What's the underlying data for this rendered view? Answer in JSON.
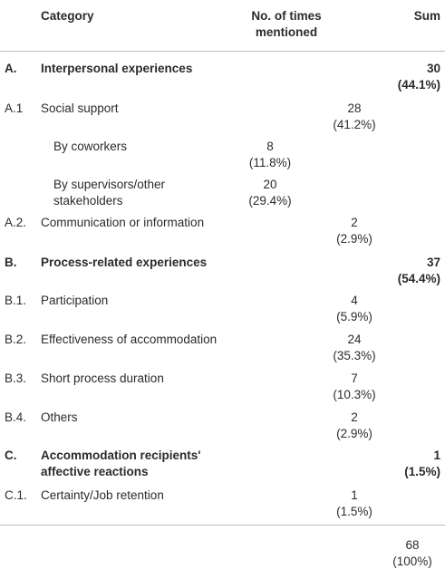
{
  "header": {
    "category": "Category",
    "mentioned_line1": "No. of times",
    "mentioned_line2": "mentioned",
    "sum": "Sum"
  },
  "rows": [
    {
      "code": "A.",
      "label": "Interpersonal experiences",
      "sum_count": "30",
      "sum_pct": "(44.1%)"
    },
    {
      "code": "A.1",
      "label": "Social support",
      "n": "28",
      "pct": "(41.2%)"
    },
    {
      "label": "By coworkers",
      "n": "8",
      "pct": "(11.8%)"
    },
    {
      "label_line1": "By supervisors/other",
      "label_line2": "stakeholders",
      "n": "20",
      "pct": "(29.4%)"
    },
    {
      "code": "A.2.",
      "label": "Communication or information",
      "n": "2",
      "pct": "(2.9%)"
    },
    {
      "code": "B.",
      "label": "Process-related experiences",
      "sum_count": "37",
      "sum_pct": "(54.4%)"
    },
    {
      "code": "B.1.",
      "label": "Participation",
      "n": "4",
      "pct": "(5.9%)"
    },
    {
      "code": "B.2.",
      "label": "Effectiveness of accommodation",
      "n": "24",
      "pct": "(35.3%)"
    },
    {
      "code": "B.3.",
      "label": "Short process duration",
      "n": "7",
      "pct": "(10.3%)"
    },
    {
      "code": "B.4.",
      "label": "Others",
      "n": "2",
      "pct": "(2.9%)"
    },
    {
      "code": "C.",
      "label_line1": "Accommodation recipients'",
      "label_line2": "affective reactions",
      "sum_count": "1",
      "sum_pct": "(1.5%)"
    },
    {
      "code": "C.1.",
      "label": "Certainty/Job retention",
      "n": "1",
      "pct": "(1.5%)"
    }
  ],
  "total": {
    "n": "68",
    "pct": "(100%)"
  }
}
